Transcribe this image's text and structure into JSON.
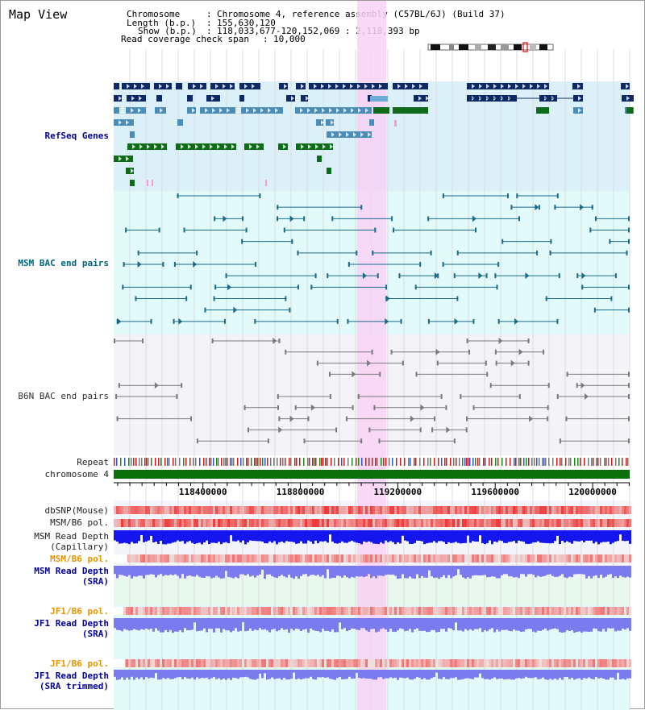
{
  "title": "Map View",
  "header": {
    "chromosome_label": "Chromosome",
    "chromosome_value": "Chromosome 4, reference assembly (C57BL/6J) (Build 37)",
    "length_label": "Length (b.p.)",
    "length_value": "155,630,120",
    "show_label": "Show (b.p.)",
    "show_value": "118,033,677-120,152,069 : 2,118,393 bp",
    "coverage_label": "Read coverage check span",
    "coverage_value": "10,000"
  },
  "tracks": {
    "refseq": "RefSeq Genes",
    "msm_bac": "MSM BAC end pairs",
    "b6n_bac": "B6N BAC end pairs",
    "repeat": "Repeat",
    "chromosome": "chromosome 4",
    "dbsnp": "dbSNP(Mouse)",
    "msm_pol1": "MSM/B6 pol.",
    "msm_depth_cap": "MSM Read Depth\n(Capillary)",
    "msm_pol2": "MSM/B6 pol.",
    "msm_depth_sra": "MSM Read Depth\n(SRA)",
    "jf1_pol1": "JF1/B6 pol.",
    "jf1_depth_sra": "JF1 Read Depth\n(SRA)",
    "jf1_pol2": "JF1/B6 pol.",
    "jf1_depth_trim": "JF1 Read Depth\n(SRA trimmed)"
  },
  "ruler": {
    "range": [
      118033677,
      120152069
    ],
    "ticks": [
      "118400000",
      "118800000",
      "119200000",
      "119600000",
      "120000000"
    ],
    "tick_values": [
      118400000,
      118800000,
      119200000,
      119600000,
      120000000
    ]
  },
  "colors": {
    "refseq_bg": "#dcf0fa",
    "msm_bg": "#e2fafa",
    "b6n_bg": "#f4f4f8",
    "highlight": "#f8d2f4",
    "gene_navy": "#0d2a66",
    "gene_steel": "#4a8db8",
    "gene_green": "#0d6b1a",
    "msm_line": "#1a6b8a",
    "b6n_line": "#7a7a7a",
    "chrom_green": "#0a6e0a",
    "depth_blue": "#1515ee",
    "depth_light": "#7b7bee"
  }
}
